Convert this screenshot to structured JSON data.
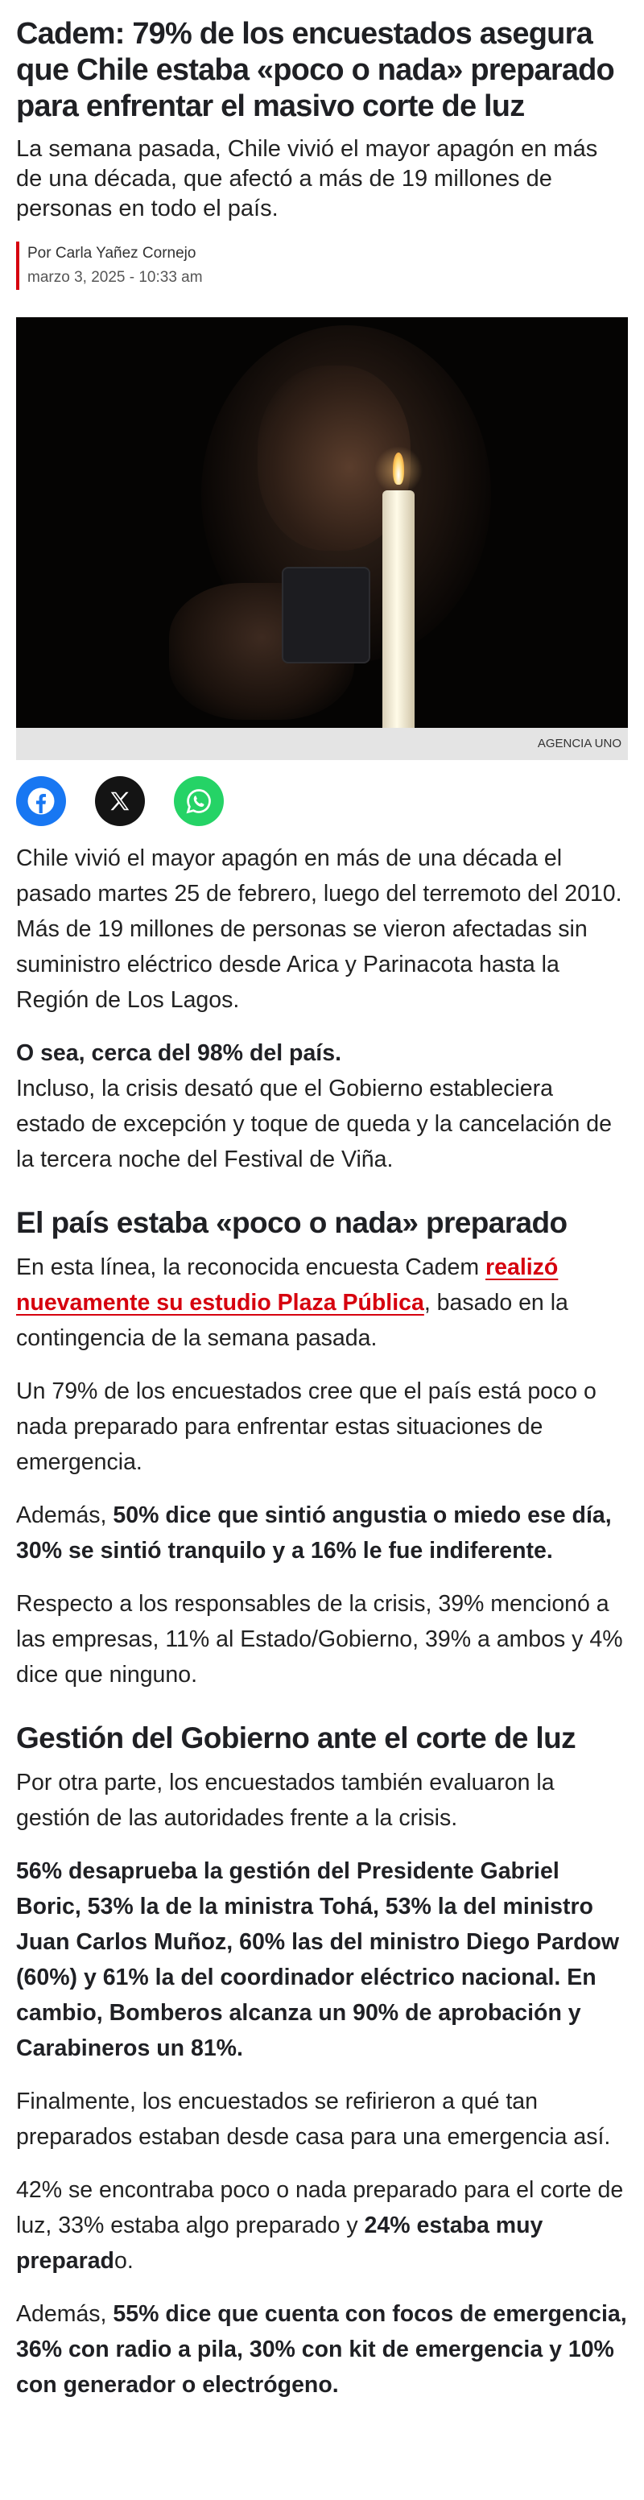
{
  "article": {
    "title": "Cadem: 79% de los encuestados asegura que Chile estaba «poco o nada» preparado para enfrentar el masivo corte de luz",
    "subtitle": "La semana pasada, Chile vivió el mayor apagón en más de una década, que afectó a más de 19 millones de personas en todo el país.",
    "author": "Por Carla Yañez Cornejo",
    "date": "marzo 3, 2025 - 10:33 am",
    "image_credit": "AGENCIA UNO",
    "share_icons": [
      "facebook-icon",
      "x-icon",
      "whatsapp-icon"
    ],
    "colors": {
      "accent": "#d6000e",
      "facebook": "#1877f2",
      "x": "#141414",
      "whatsapp": "#25d366"
    },
    "p1": "Chile vivió el mayor apagón en más de una década el pasado martes 25 de febrero, luego del terremoto del 2010. Más de 19 millones de personas se vieron afectadas sin suministro eléctrico desde Arica y Parinacota hasta la Región de Los Lagos.",
    "p2_bold": "O sea, cerca del 98% del país.",
    "p2": "Incluso, la crisis desató que el Gobierno estableciera estado de excepción y toque de queda y la cancelación de la tercera noche del Festival de Viña.",
    "h2_1": "El país estaba «poco o nada» preparado",
    "p3_a": "En esta línea, la reconocida encuesta Cadem ",
    "p3_link": "realizó nuevamente su estudio Plaza Pública",
    "p3_b": ", basado en la contingencia de la semana pasada.",
    "p4": "Un 79% de los encuestados cree que el país está poco o nada preparado para enfrentar estas situaciones de emergencia.",
    "p5_a": "Además, ",
    "p5_bold": "50% dice que sintió angustia o miedo ese día, 30% se sintió tranquilo y a 16% le fue indiferente.",
    "p6": "Respecto a los responsables de la crisis, 39% mencionó a las empresas, 11% al Estado/Gobierno, 39% a ambos y 4% dice que ninguno.",
    "h2_2": "Gestión del Gobierno ante el corte de luz",
    "p7": "Por otra parte, los encuestados también evaluaron la gestión de las autoridades frente a la crisis.",
    "p8_bold": "56% desaprueba la gestión del Presidente Gabriel Boric, 53% la de la ministra Tohá, 53% la del ministro Juan Carlos Muñoz, 60% las del ministro Diego Pardow (60%) y 61% la del coordinador eléctrico nacional. En cambio, Bomberos alcanza un 90% de aprobación y Carabineros un 81%.",
    "p9": "Finalmente, los encuestados se refirieron a qué tan preparados estaban desde casa para una emergencia así.",
    "p10_a": "42% se encontraba poco o nada preparado para el corte de luz, 33% estaba algo preparado y ",
    "p10_bold": "24% estaba muy preparad",
    "p10_b": "o.",
    "p11_a": "Además, ",
    "p11_bold": "55% dice que cuenta con focos de emergencia, 36% con radio a pila, 30% con kit de emergencia y 10% con generador o electrógeno."
  }
}
